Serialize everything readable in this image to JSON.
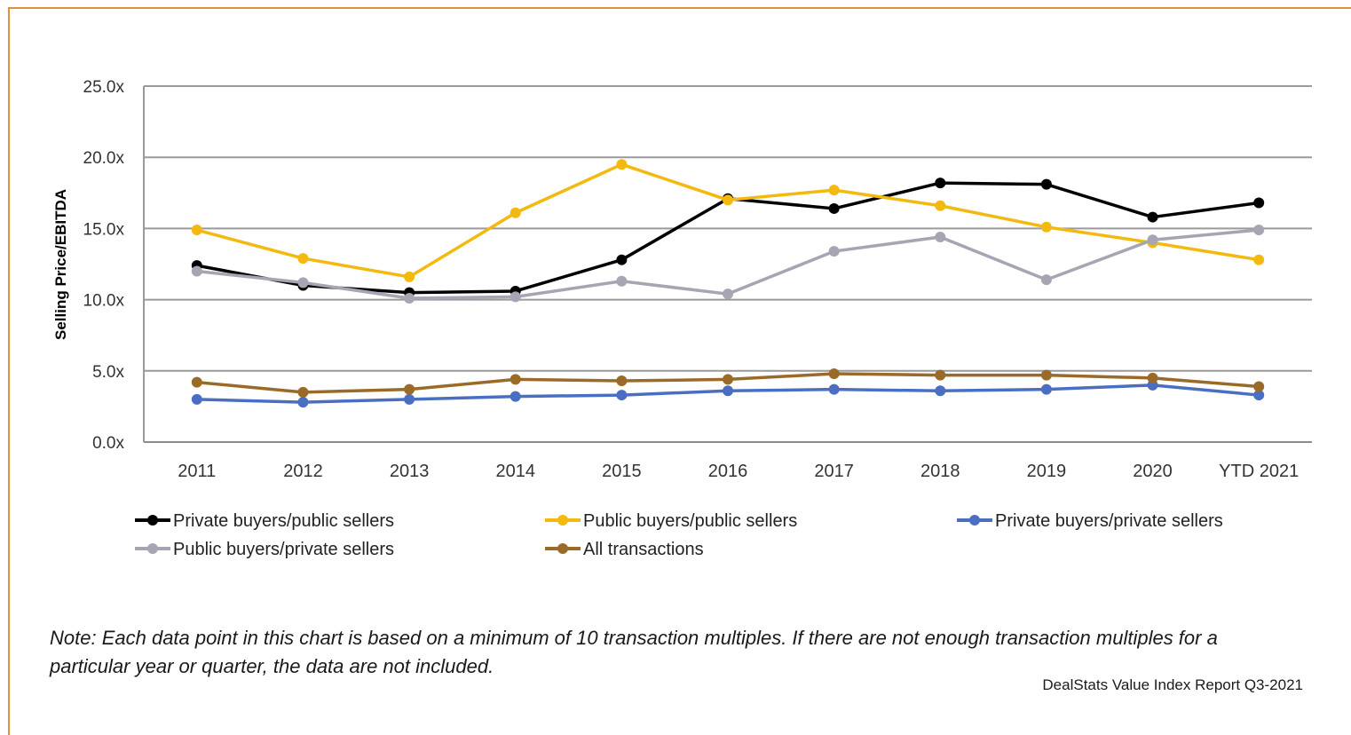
{
  "chart_data": {
    "type": "line",
    "ylabel": "Selling Price/EBITDA",
    "xlabel": "",
    "categories": [
      "2011",
      "2012",
      "2013",
      "2014",
      "2015",
      "2016",
      "2017",
      "2018",
      "2019",
      "2020",
      "YTD 2021"
    ],
    "ylim": [
      0,
      25
    ],
    "yticks": [
      "0.0x",
      "5.0x",
      "10.0x",
      "15.0x",
      "20.0x",
      "25.0x"
    ],
    "grid": "horizontal",
    "legend_position": "bottom",
    "series": [
      {
        "name": "Private buyers/public sellers",
        "color": "#000000",
        "values": [
          12.4,
          11.0,
          10.5,
          10.6,
          12.8,
          17.1,
          16.4,
          18.2,
          18.1,
          15.8,
          16.8
        ]
      },
      {
        "name": "Public buyers/public sellers",
        "color": "#f3b90f",
        "values": [
          14.9,
          12.9,
          11.6,
          16.1,
          19.5,
          17.0,
          17.7,
          16.6,
          15.1,
          14.0,
          12.8
        ]
      },
      {
        "name": "Private buyers/private sellers",
        "color": "#4a6fc2",
        "values": [
          3.0,
          2.8,
          3.0,
          3.2,
          3.3,
          3.6,
          3.7,
          3.6,
          3.7,
          4.0,
          3.3
        ]
      },
      {
        "name": "Public buyers/private sellers",
        "color": "#a5a5b3",
        "values": [
          12.0,
          11.2,
          10.1,
          10.2,
          11.3,
          10.4,
          13.4,
          14.4,
          11.4,
          14.2,
          14.9
        ]
      },
      {
        "name": "All transactions",
        "color": "#9a6a28",
        "values": [
          4.2,
          3.5,
          3.7,
          4.4,
          4.3,
          4.4,
          4.8,
          4.7,
          4.7,
          4.5,
          3.9
        ]
      }
    ]
  },
  "note": "Note: Each data point in this chart is based on a minimum of 10 transaction multiples. If there are not enough transaction multiples for a particular year or quarter, the data are not included.",
  "source": "DealStats Value Index Report Q3-2021"
}
